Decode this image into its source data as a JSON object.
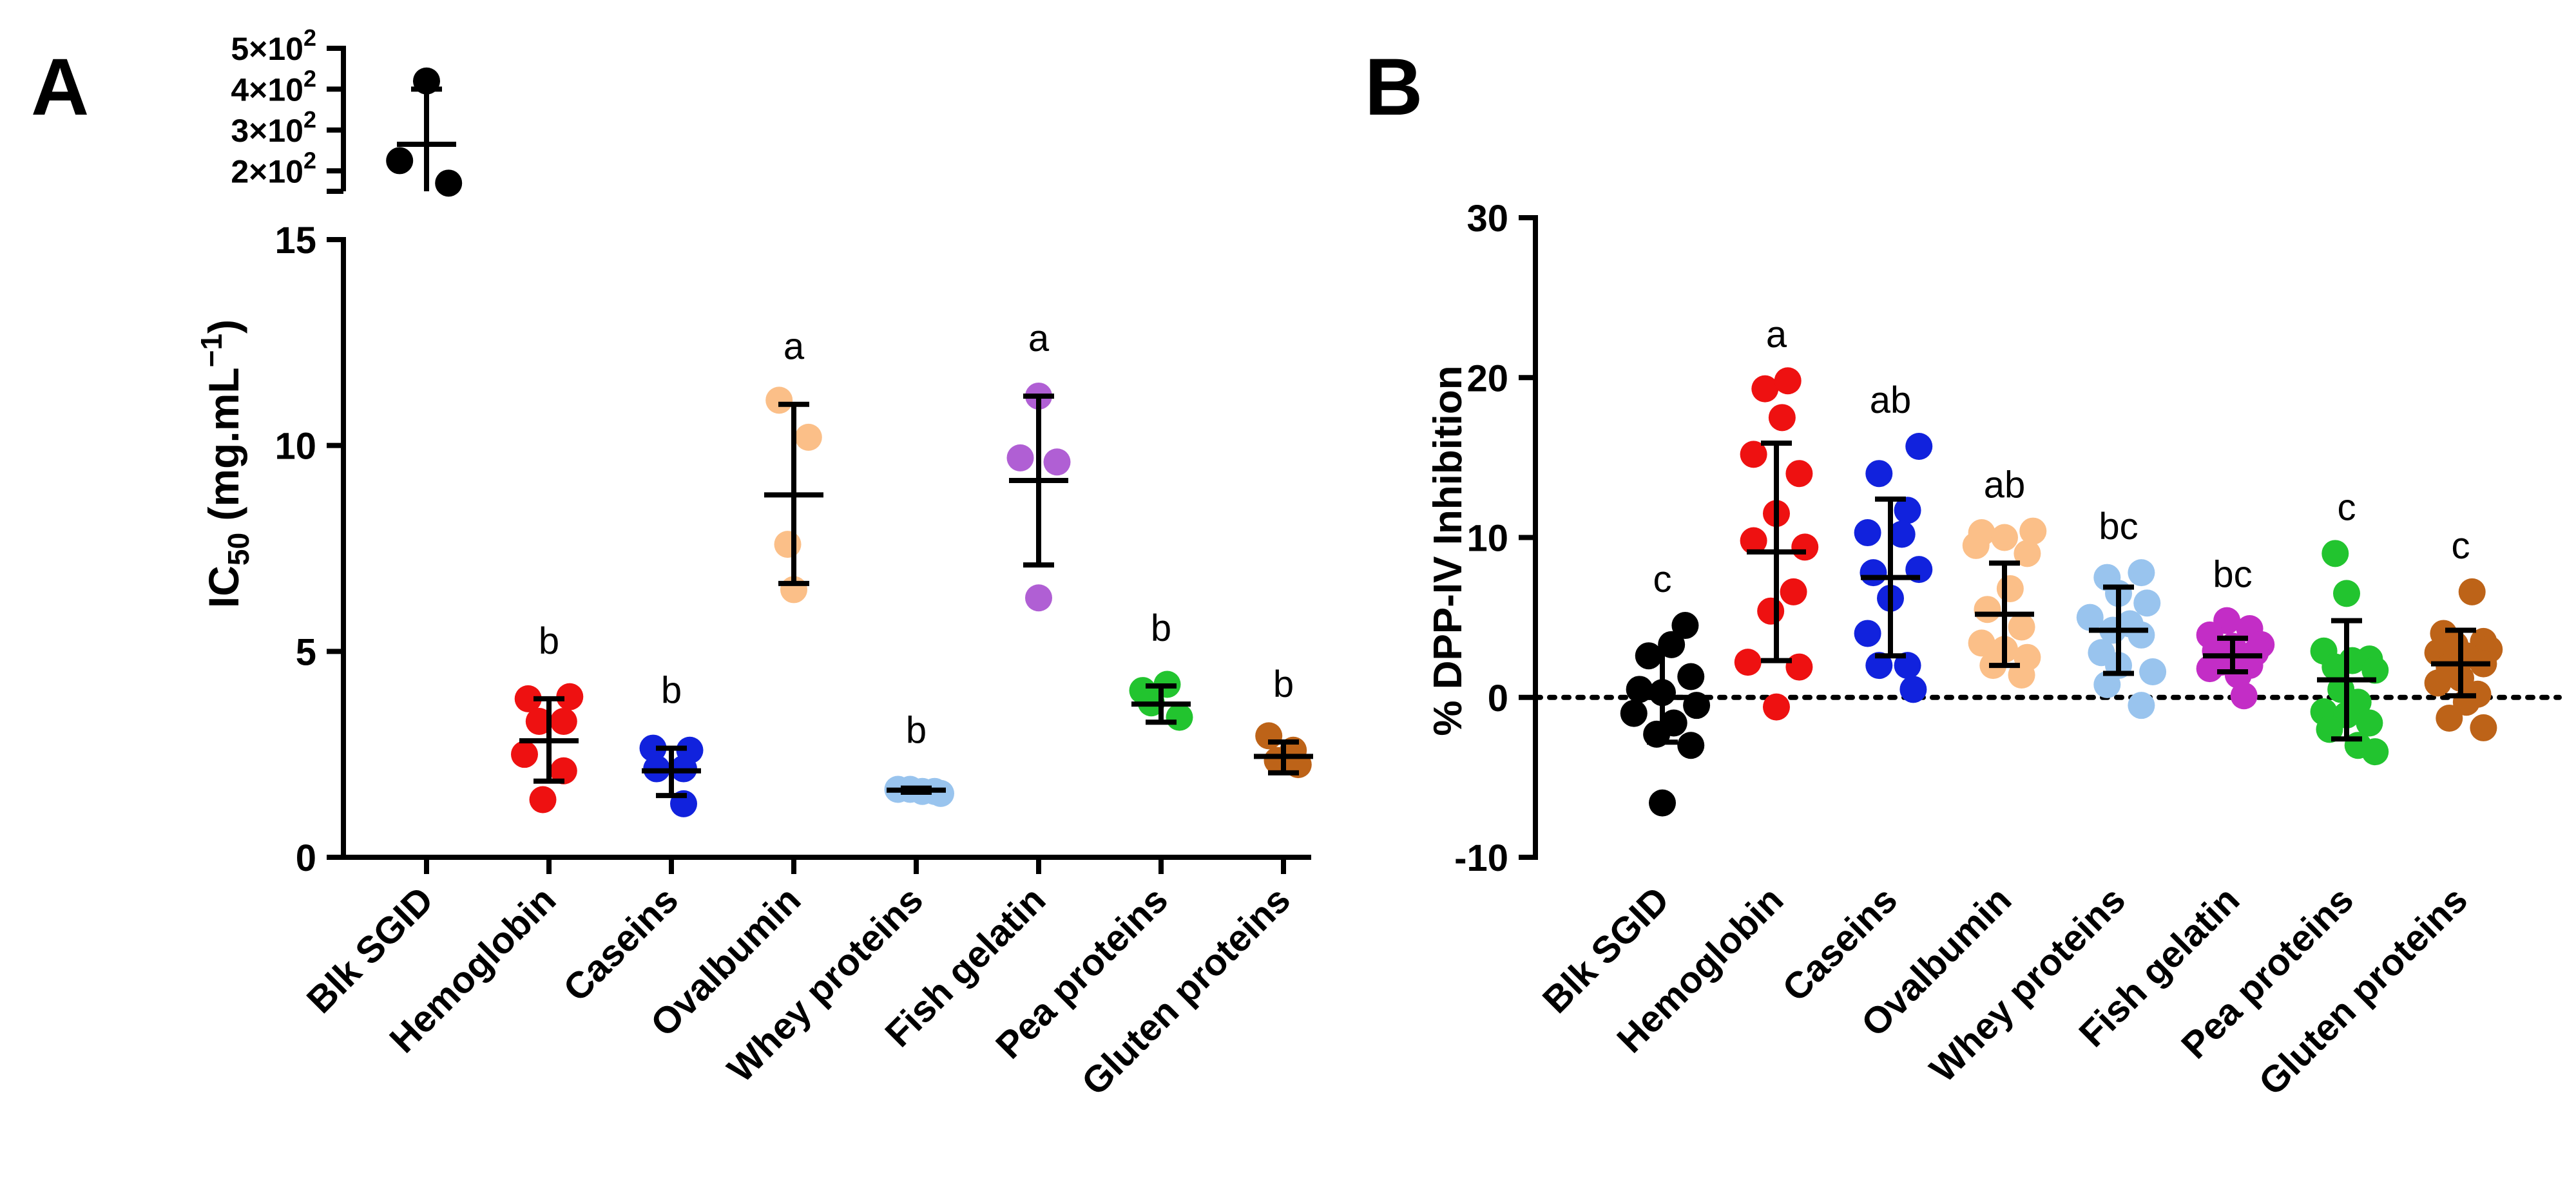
{
  "figure": {
    "background": "#ffffff",
    "axis_color": "#000000"
  },
  "chart_data": [
    {
      "panel_label": "A",
      "type": "scatter",
      "subtype": "dot-plot-with-mean-sd",
      "xlabel": "",
      "ylabel_main": "IC",
      "ylabel_sub": "50",
      "ylabel_rest": " (mg.mL",
      "ylabel_sup": "−1",
      "ylabel_close": ")",
      "categories": [
        "Blk SGID",
        "Hemoglobin",
        "Caseins",
        "Ovalbumin",
        "Whey proteins",
        "Fish gelatin",
        "Pea proteins",
        "Gluten proteins"
      ],
      "colors": [
        "#000000",
        "#ee1111",
        "#1122dd",
        "#fbbf88",
        "#99c4ee",
        "#b05fd4",
        "#22c42f",
        "#bd6318"
      ],
      "ylim_lower": [
        0,
        15
      ],
      "yticks_lower": [
        0,
        5,
        10,
        15
      ],
      "ytick_labels_lower": [
        "0",
        "5",
        "10",
        "15"
      ],
      "ylim_upper": [
        150,
        500
      ],
      "yticks_upper": [
        200,
        300,
        400,
        500
      ],
      "ytick_labels_upper": [
        {
          "base": "2×10",
          "exp": "2"
        },
        {
          "base": "3×10",
          "exp": "2"
        },
        {
          "base": "4×10",
          "exp": "2"
        },
        {
          "base": "5×10",
          "exp": "2"
        }
      ],
      "series": [
        {
          "name": "Blk SGID",
          "points": [
            [
              0.0,
              420
            ],
            [
              -0.22,
              225
            ],
            [
              0.18,
              170
            ]
          ],
          "mean": 265,
          "sd_low": 140,
          "sd_high": 400,
          "letter": "",
          "broken_axis": true
        },
        {
          "name": "Hemoglobin",
          "points": [
            [
              -0.17,
              3.85
            ],
            [
              0.17,
              3.9
            ],
            [
              -0.08,
              3.3
            ],
            [
              0.12,
              3.3
            ],
            [
              -0.2,
              2.5
            ],
            [
              0.12,
              2.1
            ],
            [
              -0.05,
              1.4
            ]
          ],
          "mean": 2.83,
          "sd_low": 1.85,
          "sd_high": 3.85,
          "letter": "b"
        },
        {
          "name": "Caseins",
          "points": [
            [
              -0.15,
              2.65
            ],
            [
              0.15,
              2.6
            ],
            [
              -0.12,
              2.15
            ],
            [
              0.1,
              2.15
            ],
            [
              0.1,
              1.3
            ]
          ],
          "mean": 2.1,
          "sd_low": 1.5,
          "sd_high": 2.65,
          "letter": "b"
        },
        {
          "name": "Ovalbumin",
          "points": [
            [
              -0.12,
              11.1
            ],
            [
              0.12,
              10.2
            ],
            [
              -0.05,
              7.6
            ],
            [
              0.0,
              6.5
            ]
          ],
          "mean": 8.8,
          "sd_low": 6.65,
          "sd_high": 11.0,
          "letter": "a"
        },
        {
          "name": "Whey proteins",
          "points": [
            [
              -0.15,
              1.65
            ],
            [
              -0.05,
              1.65
            ],
            [
              0.05,
              1.6
            ],
            [
              0.15,
              1.6
            ],
            [
              0.2,
              1.55
            ]
          ],
          "mean": 1.63,
          "sd_low": 1.58,
          "sd_high": 1.68,
          "letter": "b"
        },
        {
          "name": "Fish gelatin",
          "points": [
            [
              0.0,
              11.2
            ],
            [
              -0.15,
              9.7
            ],
            [
              0.15,
              9.6
            ],
            [
              0.0,
              6.3
            ]
          ],
          "mean": 9.15,
          "sd_low": 7.1,
          "sd_high": 11.2,
          "letter": "a"
        },
        {
          "name": "Pea proteins",
          "points": [
            [
              -0.15,
              4.05
            ],
            [
              0.05,
              4.2
            ],
            [
              -0.08,
              3.75
            ],
            [
              0.15,
              3.4
            ]
          ],
          "mean": 3.72,
          "sd_low": 3.28,
          "sd_high": 4.16,
          "letter": "b"
        },
        {
          "name": "Gluten proteins",
          "points": [
            [
              -0.12,
              2.95
            ],
            [
              0.08,
              2.6
            ],
            [
              -0.05,
              2.35
            ],
            [
              0.12,
              2.25
            ]
          ],
          "mean": 2.45,
          "sd_low": 2.05,
          "sd_high": 2.8,
          "letter": "b"
        }
      ]
    },
    {
      "panel_label": "B",
      "type": "scatter",
      "subtype": "dot-plot-with-mean-sd",
      "xlabel": "",
      "ylabel": "% DPP-IV Inhibition",
      "categories": [
        "Blk SGID",
        "Hemoglobin",
        "Caseins",
        "Ovalbumin",
        "Whey proteins",
        "Fish gelatin",
        "Pea proteins",
        "Gluten proteins"
      ],
      "colors": [
        "#000000",
        "#ee1111",
        "#1122dd",
        "#fbbf88",
        "#99c4ee",
        "#c32dc6",
        "#22c42f",
        "#bd6318"
      ],
      "ylim": [
        -10,
        30
      ],
      "yticks": [
        -10,
        0,
        10,
        20,
        30
      ],
      "ytick_labels": [
        "-10",
        "0",
        "10",
        "20",
        "30"
      ],
      "reference_line": 0,
      "series": [
        {
          "name": "Blk SGID",
          "points": [
            [
              0.2,
              4.5
            ],
            [
              0.08,
              3.3
            ],
            [
              -0.12,
              2.6
            ],
            [
              0.25,
              1.3
            ],
            [
              -0.2,
              0.5
            ],
            [
              0.0,
              0.3
            ],
            [
              0.3,
              -0.5
            ],
            [
              -0.25,
              -1.0
            ],
            [
              0.1,
              -1.6
            ],
            [
              -0.05,
              -2.3
            ],
            [
              0.25,
              -3.0
            ],
            [
              0.0,
              -6.6
            ]
          ],
          "mean": 0.0,
          "sd_low": -2.8,
          "sd_high": 2.8,
          "letter": "c"
        },
        {
          "name": "Hemoglobin",
          "points": [
            [
              -0.1,
              19.3
            ],
            [
              0.1,
              19.8
            ],
            [
              0.05,
              17.5
            ],
            [
              -0.2,
              15.2
            ],
            [
              0.2,
              14.0
            ],
            [
              0.0,
              11.5
            ],
            [
              -0.2,
              9.8
            ],
            [
              0.25,
              9.4
            ],
            [
              0.15,
              6.6
            ],
            [
              -0.05,
              5.4
            ],
            [
              -0.25,
              2.2
            ],
            [
              0.2,
              1.9
            ],
            [
              0.0,
              -0.6
            ]
          ],
          "mean": 9.1,
          "sd_low": 2.3,
          "sd_high": 15.9,
          "letter": "a"
        },
        {
          "name": "Caseins",
          "points": [
            [
              0.25,
              15.7
            ],
            [
              -0.1,
              14.0
            ],
            [
              0.15,
              11.7
            ],
            [
              -0.2,
              10.3
            ],
            [
              0.1,
              10.2
            ],
            [
              0.25,
              8.0
            ],
            [
              -0.15,
              7.8
            ],
            [
              0.0,
              6.2
            ],
            [
              -0.2,
              4.0
            ],
            [
              0.15,
              2.0
            ],
            [
              -0.1,
              2.0
            ],
            [
              0.2,
              0.5
            ]
          ],
          "mean": 7.5,
          "sd_low": 2.6,
          "sd_high": 12.4,
          "letter": "ab"
        },
        {
          "name": "Ovalbumin",
          "points": [
            [
              -0.2,
              10.3
            ],
            [
              0.25,
              10.4
            ],
            [
              0.0,
              10.0
            ],
            [
              -0.25,
              9.5
            ],
            [
              0.2,
              9.0
            ],
            [
              0.05,
              6.8
            ],
            [
              -0.15,
              5.5
            ],
            [
              0.15,
              4.4
            ],
            [
              -0.2,
              3.4
            ],
            [
              0.0,
              3.0
            ],
            [
              0.2,
              2.5
            ],
            [
              -0.1,
              2.0
            ],
            [
              0.15,
              1.4
            ]
          ],
          "mean": 5.2,
          "sd_low": 2.0,
          "sd_high": 8.4,
          "letter": "ab"
        },
        {
          "name": "Whey proteins",
          "points": [
            [
              -0.1,
              7.5
            ],
            [
              0.2,
              7.8
            ],
            [
              0.0,
              6.5
            ],
            [
              0.25,
              5.9
            ],
            [
              -0.25,
              5.0
            ],
            [
              0.1,
              4.6
            ],
            [
              -0.05,
              4.2
            ],
            [
              0.2,
              3.9
            ],
            [
              -0.15,
              2.8
            ],
            [
              0.0,
              2.0
            ],
            [
              0.3,
              1.6
            ],
            [
              -0.1,
              0.8
            ],
            [
              0.2,
              -0.5
            ]
          ],
          "mean": 4.2,
          "sd_low": 1.5,
          "sd_high": 6.9,
          "letter": "bc"
        },
        {
          "name": "Fish gelatin",
          "points": [
            [
              -0.05,
              4.8
            ],
            [
              0.15,
              4.3
            ],
            [
              -0.2,
              3.9
            ],
            [
              0.25,
              3.3
            ],
            [
              0.0,
              3.2
            ],
            [
              -0.15,
              2.9
            ],
            [
              0.2,
              2.8
            ],
            [
              0.05,
              2.6
            ],
            [
              -0.1,
              2.2
            ],
            [
              0.15,
              2.0
            ],
            [
              -0.2,
              1.8
            ],
            [
              0.05,
              1.4
            ],
            [
              0.1,
              0.1
            ]
          ],
          "mean": 2.6,
          "sd_low": 1.6,
          "sd_high": 3.7,
          "letter": "bc"
        },
        {
          "name": "Pea proteins",
          "points": [
            [
              -0.1,
              9.0
            ],
            [
              0.0,
              6.5
            ],
            [
              -0.2,
              2.9
            ],
            [
              0.2,
              2.4
            ],
            [
              0.05,
              2.3
            ],
            [
              -0.1,
              1.9
            ],
            [
              0.25,
              1.7
            ],
            [
              -0.05,
              0.5
            ],
            [
              0.1,
              -0.3
            ],
            [
              -0.2,
              -0.9
            ],
            [
              0.0,
              -1.1
            ],
            [
              0.2,
              -1.6
            ],
            [
              -0.15,
              -2.0
            ],
            [
              0.1,
              -3.0
            ],
            [
              0.25,
              -3.4
            ]
          ],
          "mean": 1.1,
          "sd_low": -2.6,
          "sd_high": 4.8,
          "letter": "c"
        },
        {
          "name": "Gluten proteins",
          "points": [
            [
              0.1,
              6.6
            ],
            [
              -0.15,
              4.0
            ],
            [
              0.2,
              3.5
            ],
            [
              -0.05,
              3.3
            ],
            [
              0.25,
              3.0
            ],
            [
              -0.2,
              2.8
            ],
            [
              0.05,
              2.6
            ],
            [
              0.2,
              2.1
            ],
            [
              -0.1,
              1.9
            ],
            [
              0.0,
              1.2
            ],
            [
              -0.2,
              0.9
            ],
            [
              0.15,
              0.2
            ],
            [
              0.05,
              -0.3
            ],
            [
              -0.1,
              -1.3
            ],
            [
              0.2,
              -1.9
            ]
          ],
          "mean": 2.1,
          "sd_low": 0.1,
          "sd_high": 4.2,
          "letter": "c"
        }
      ]
    }
  ]
}
